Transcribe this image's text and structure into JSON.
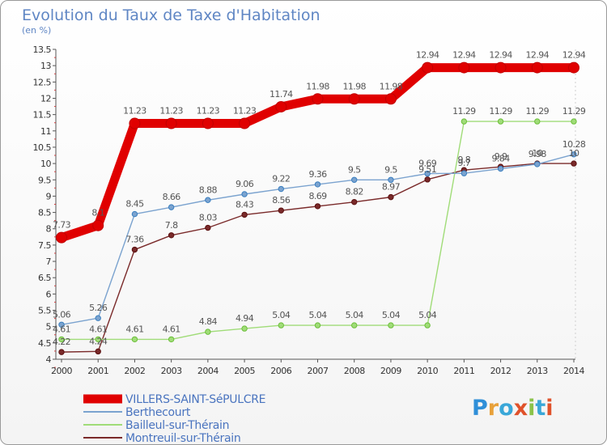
{
  "header": {
    "title": "Evolution du Taux de Taxe d'Habitation",
    "subtitle": "(en %)"
  },
  "brand": {
    "letters": [
      "P",
      "r",
      "o",
      "x",
      "i",
      "t",
      "i"
    ],
    "colors": [
      "#2f8fd8",
      "#e8a13a",
      "#3aa7d8",
      "#e0522b",
      "#8bc34a",
      "#3aa7d8",
      "#e0522b"
    ]
  },
  "chart_data": {
    "type": "line",
    "title": "Evolution du Taux de Taxe d'Habitation",
    "ylabel": "(en %)",
    "xlabel": "",
    "x": [
      2000,
      2001,
      2002,
      2003,
      2004,
      2005,
      2006,
      2007,
      2008,
      2009,
      2010,
      2011,
      2012,
      2013,
      2014
    ],
    "ylim": [
      4,
      13.5
    ],
    "yticks": [
      4,
      4.5,
      5,
      5.5,
      6,
      6.5,
      7,
      7.5,
      8,
      8.5,
      9,
      9.5,
      10,
      10.5,
      11,
      11.5,
      12,
      12.5,
      13,
      13.5
    ],
    "grid": false,
    "legend": "bottom-left",
    "series": [
      {
        "name": "VILLERS-SAINT-SéPULCRE",
        "color": "#e00000",
        "values": [
          7.73,
          8.1,
          11.23,
          11.23,
          11.23,
          11.23,
          11.74,
          11.98,
          11.98,
          11.98,
          12.94,
          12.94,
          12.94,
          12.94,
          12.94
        ],
        "labels": [
          "7.73",
          "8.1",
          "11.23",
          "11.23",
          "11.23",
          "11.23",
          "11.74",
          "11.98",
          "11.98",
          "11.98",
          "12.94",
          "12.94",
          "12.94",
          "12.94",
          "12.94"
        ]
      },
      {
        "name": "Berthecourt",
        "color": "#7ba3cf",
        "values": [
          5.06,
          5.26,
          8.45,
          8.66,
          8.88,
          9.06,
          9.22,
          9.36,
          9.5,
          9.5,
          9.69,
          9.7,
          9.84,
          9.98,
          10.28
        ],
        "labels": [
          "5.06",
          "5.26",
          "8.45",
          "8.66",
          "8.88",
          "9.06",
          "9.22",
          "9.36",
          "9.5",
          "9.5",
          "9.69",
          "9.7",
          "9.84",
          "9.98",
          "10.28"
        ]
      },
      {
        "name": "Bailleul-sur-Thérain",
        "color": "#a0dc78",
        "values": [
          4.61,
          4.61,
          4.61,
          4.61,
          4.84,
          4.94,
          5.04,
          5.04,
          5.04,
          5.04,
          5.04,
          11.29,
          11.29,
          11.29,
          11.29
        ],
        "labels": [
          "4.61",
          "4.61",
          "4.61",
          "4.61",
          "4.84",
          "4.94",
          "5.04",
          "5.04",
          "5.04",
          "5.04",
          "5.04",
          "11.29",
          "11.29",
          "11.29",
          "11.29"
        ]
      },
      {
        "name": "Montreuil-sur-Thérain",
        "color": "#7a2a2a",
        "values": [
          4.22,
          4.24,
          7.36,
          7.8,
          8.03,
          8.43,
          8.56,
          8.69,
          8.82,
          8.97,
          9.51,
          9.8,
          9.9,
          10,
          10
        ],
        "labels": [
          "4.22",
          "4.24",
          "7.36",
          "7.8",
          "8.03",
          "8.43",
          "8.56",
          "8.69",
          "8.82",
          "8.97",
          "9.51",
          "9.8",
          "9.9",
          "10",
          "10"
        ]
      }
    ]
  }
}
